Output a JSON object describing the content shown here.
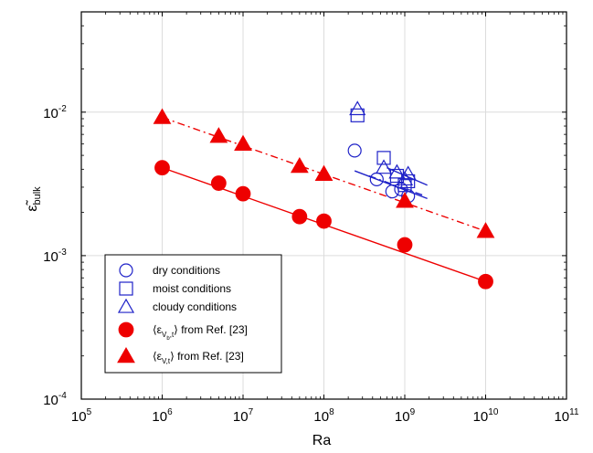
{
  "chart_data": {
    "type": "scatter",
    "xlabel": "Ra",
    "ylabel_main": "ε̃",
    "ylabel_sub": "bulk",
    "xscale": "log",
    "yscale": "log",
    "xlim": [
      100000,
      100000000000
    ],
    "ylim": [
      0.0001,
      0.05
    ],
    "grid": true,
    "x_ticks": [
      {
        "base": "10",
        "exp": "5",
        "value": 100000
      },
      {
        "base": "10",
        "exp": "6",
        "value": 1000000
      },
      {
        "base": "10",
        "exp": "7",
        "value": 10000000
      },
      {
        "base": "10",
        "exp": "8",
        "value": 100000000
      },
      {
        "base": "10",
        "exp": "9",
        "value": 1000000000
      },
      {
        "base": "10",
        "exp": "10",
        "value": 10000000000
      },
      {
        "base": "10",
        "exp": "11",
        "value": 100000000000
      }
    ],
    "y_ticks": [
      {
        "base": "10",
        "exp": "-4",
        "value": 0.0001
      },
      {
        "base": "10",
        "exp": "-3",
        "value": 0.001
      },
      {
        "base": "10",
        "exp": "-2",
        "value": 0.01
      }
    ],
    "legend_position": "bottom-left",
    "series": [
      {
        "key": "dry",
        "marker": "circle",
        "filled": false,
        "color": "#1f22c8",
        "legend": {
          "text": "dry conditions"
        },
        "x": [
          240000000,
          450000000,
          700000000,
          900000000,
          1100000000
        ],
        "y": [
          0.0054,
          0.0034,
          0.0028,
          0.0029,
          0.0026
        ],
        "fit": {
          "x": [
            240000000,
            1900000000
          ],
          "y": [
            0.0039,
            0.0025
          ],
          "style": "solid"
        }
      },
      {
        "key": "moist",
        "marker": "square",
        "filled": false,
        "color": "#1f22c8",
        "legend": {
          "text": "moist conditions"
        },
        "x": [
          260000000,
          550000000,
          800000000,
          1000000000,
          1100000000
        ],
        "y": [
          0.0095,
          0.0048,
          0.0036,
          0.0031,
          0.0033
        ],
        "fit": {
          "x": [
            360000000,
            1800000000
          ],
          "y": [
            0.0036,
            0.0026
          ],
          "style": "dashdot"
        }
      },
      {
        "key": "cloudy",
        "marker": "triangle",
        "filled": false,
        "color": "#1f22c8",
        "legend": {
          "text": "cloudy conditions"
        },
        "x": [
          260000000,
          550000000,
          800000000,
          1000000000,
          1100000000
        ],
        "y": [
          0.0105,
          0.0041,
          0.0038,
          0.0034,
          0.0037
        ],
        "fit": {
          "x": [
            600000000,
            1900000000
          ],
          "y": [
            0.0041,
            0.0031
          ],
          "style": "solid"
        }
      },
      {
        "key": "vb",
        "marker": "circle",
        "filled": true,
        "color": "#ee0000",
        "legend": {
          "pre": "⟨ε",
          "sub1": "V",
          "sub2": "b",
          "sub3": ",t",
          "post": "⟩ from Ref. [23]"
        },
        "x": [
          1000000,
          5000000,
          10000000,
          50000000,
          100000000,
          1000000000,
          10000000000
        ],
        "y": [
          0.0041,
          0.0032,
          0.0027,
          0.00187,
          0.00174,
          0.00119,
          0.00066
        ],
        "fit": {
          "x": [
            1000000,
            10000000000
          ],
          "y": [
            0.0041,
            0.00066
          ],
          "style": "solid"
        }
      },
      {
        "key": "vt",
        "marker": "triangle",
        "filled": true,
        "color": "#ee0000",
        "legend": {
          "pre": "⟨ε",
          "sub1": "V,t",
          "post": "⟩ from Ref. [23]"
        },
        "x": [
          1000000,
          5000000,
          10000000,
          50000000,
          100000000,
          1000000000,
          10000000000
        ],
        "y": [
          0.0092,
          0.0068,
          0.006,
          0.0042,
          0.0037,
          0.0024,
          0.00148
        ],
        "fit": {
          "x": [
            1000000,
            10000000000
          ],
          "y": [
            0.0092,
            0.00148
          ],
          "style": "dashdot"
        }
      }
    ]
  }
}
